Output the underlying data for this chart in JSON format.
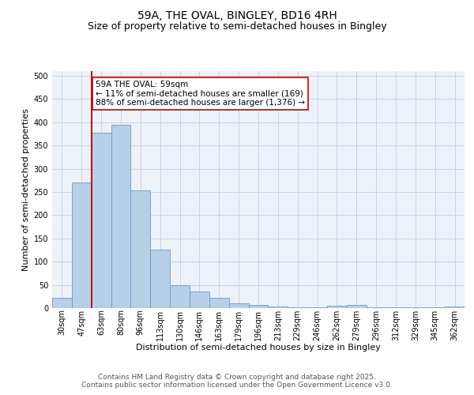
{
  "title": "59A, THE OVAL, BINGLEY, BD16 4RH",
  "subtitle": "Size of property relative to semi-detached houses in Bingley",
  "xlabel": "Distribution of semi-detached houses by size in Bingley",
  "ylabel": "Number of semi-detached properties",
  "categories": [
    "30sqm",
    "47sqm",
    "63sqm",
    "80sqm",
    "96sqm",
    "113sqm",
    "130sqm",
    "146sqm",
    "163sqm",
    "179sqm",
    "196sqm",
    "213sqm",
    "229sqm",
    "246sqm",
    "262sqm",
    "279sqm",
    "296sqm",
    "312sqm",
    "329sqm",
    "345sqm",
    "362sqm"
  ],
  "values": [
    22,
    270,
    378,
    394,
    253,
    125,
    50,
    35,
    22,
    10,
    7,
    4,
    2,
    2,
    5,
    7,
    2,
    1,
    2,
    1,
    3
  ],
  "bar_color": "#b8cfe8",
  "bar_edge_color": "#6899c8",
  "grid_color": "#c8d4e8",
  "background_color": "#edf2f9",
  "vline_color": "#cc0000",
  "annotation_text": "59A THE OVAL: 59sqm\n← 11% of semi-detached houses are smaller (169)\n88% of semi-detached houses are larger (1,376) →",
  "annotation_box_color": "#cc0000",
  "ylim": [
    0,
    510
  ],
  "yticks": [
    0,
    50,
    100,
    150,
    200,
    250,
    300,
    350,
    400,
    450,
    500
  ],
  "footer_line1": "Contains HM Land Registry data © Crown copyright and database right 2025.",
  "footer_line2": "Contains public sector information licensed under the Open Government Licence v3.0.",
  "title_fontsize": 10,
  "subtitle_fontsize": 9,
  "axis_label_fontsize": 8,
  "tick_fontsize": 7,
  "annotation_fontsize": 7.5,
  "footer_fontsize": 6.5
}
